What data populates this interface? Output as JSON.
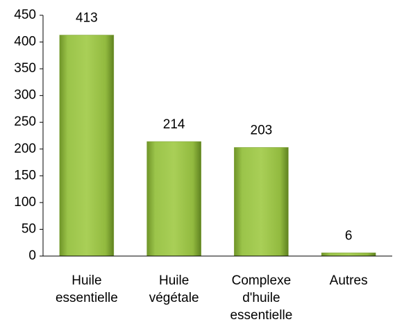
{
  "chart_data": {
    "type": "bar",
    "categories": [
      "Huile essentielle",
      "Huile végétale",
      "Complexe d'huile essentielle",
      "Autres"
    ],
    "values": [
      413,
      214,
      203,
      6
    ],
    "color": "#8db33a",
    "ylim": [
      0,
      450
    ],
    "yticks": [
      0,
      50,
      100,
      150,
      200,
      250,
      300,
      350,
      400,
      450
    ],
    "grid": false
  }
}
